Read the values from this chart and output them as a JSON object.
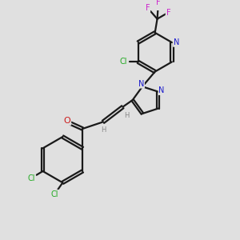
{
  "background_color": "#e0e0e0",
  "bond_color": "#1a1a1a",
  "bond_width": 1.6,
  "atom_colors": {
    "N": "#1a1acc",
    "O": "#cc1a1a",
    "Cl": "#22aa22",
    "F": "#cc22cc",
    "H": "#888888"
  },
  "font_size": 7.0,
  "fig_size": [
    3.0,
    3.0
  ],
  "dpi": 100,
  "xlim": [
    0,
    10
  ],
  "ylim": [
    0,
    10
  ]
}
